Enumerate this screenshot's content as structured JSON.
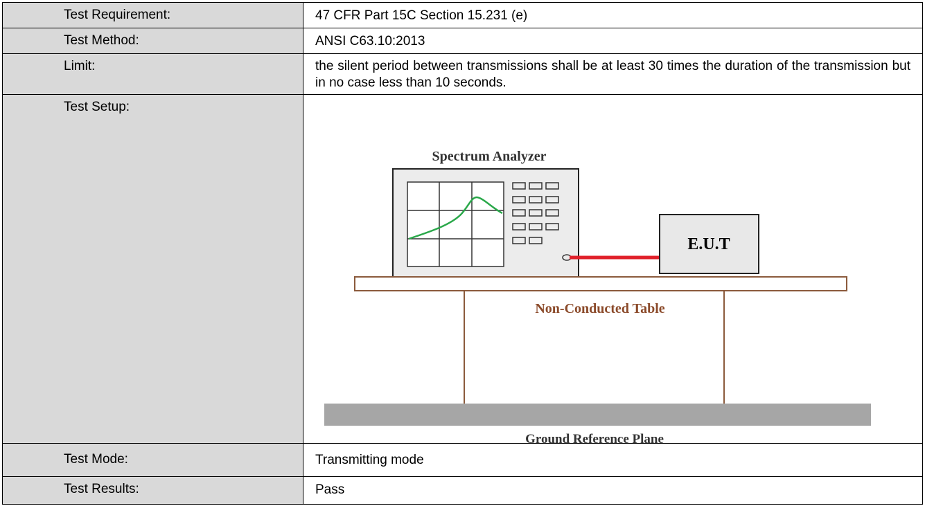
{
  "table": {
    "rows": [
      [
        "Test Requirement:",
        "47 CFR Part 15C Section 15.231 (e)"
      ],
      [
        "Test Method:",
        "ANSI C63.10:2013"
      ],
      [
        "Limit:",
        "the silent period between transmissions shall be at least 30 times the duration of the transmission but in no case less than 10 seconds."
      ],
      [
        "Test Setup:",
        null
      ],
      [
        "Test Mode:",
        "Transmitting mode"
      ],
      [
        "Test Results:",
        "Pass"
      ]
    ]
  },
  "diagram": {
    "analyzer_label": "Spectrum Analyzer",
    "eut_label": "E.U.T",
    "table_label": "Non-Conducted Table",
    "ground_label": "Ground Reference Plane"
  }
}
